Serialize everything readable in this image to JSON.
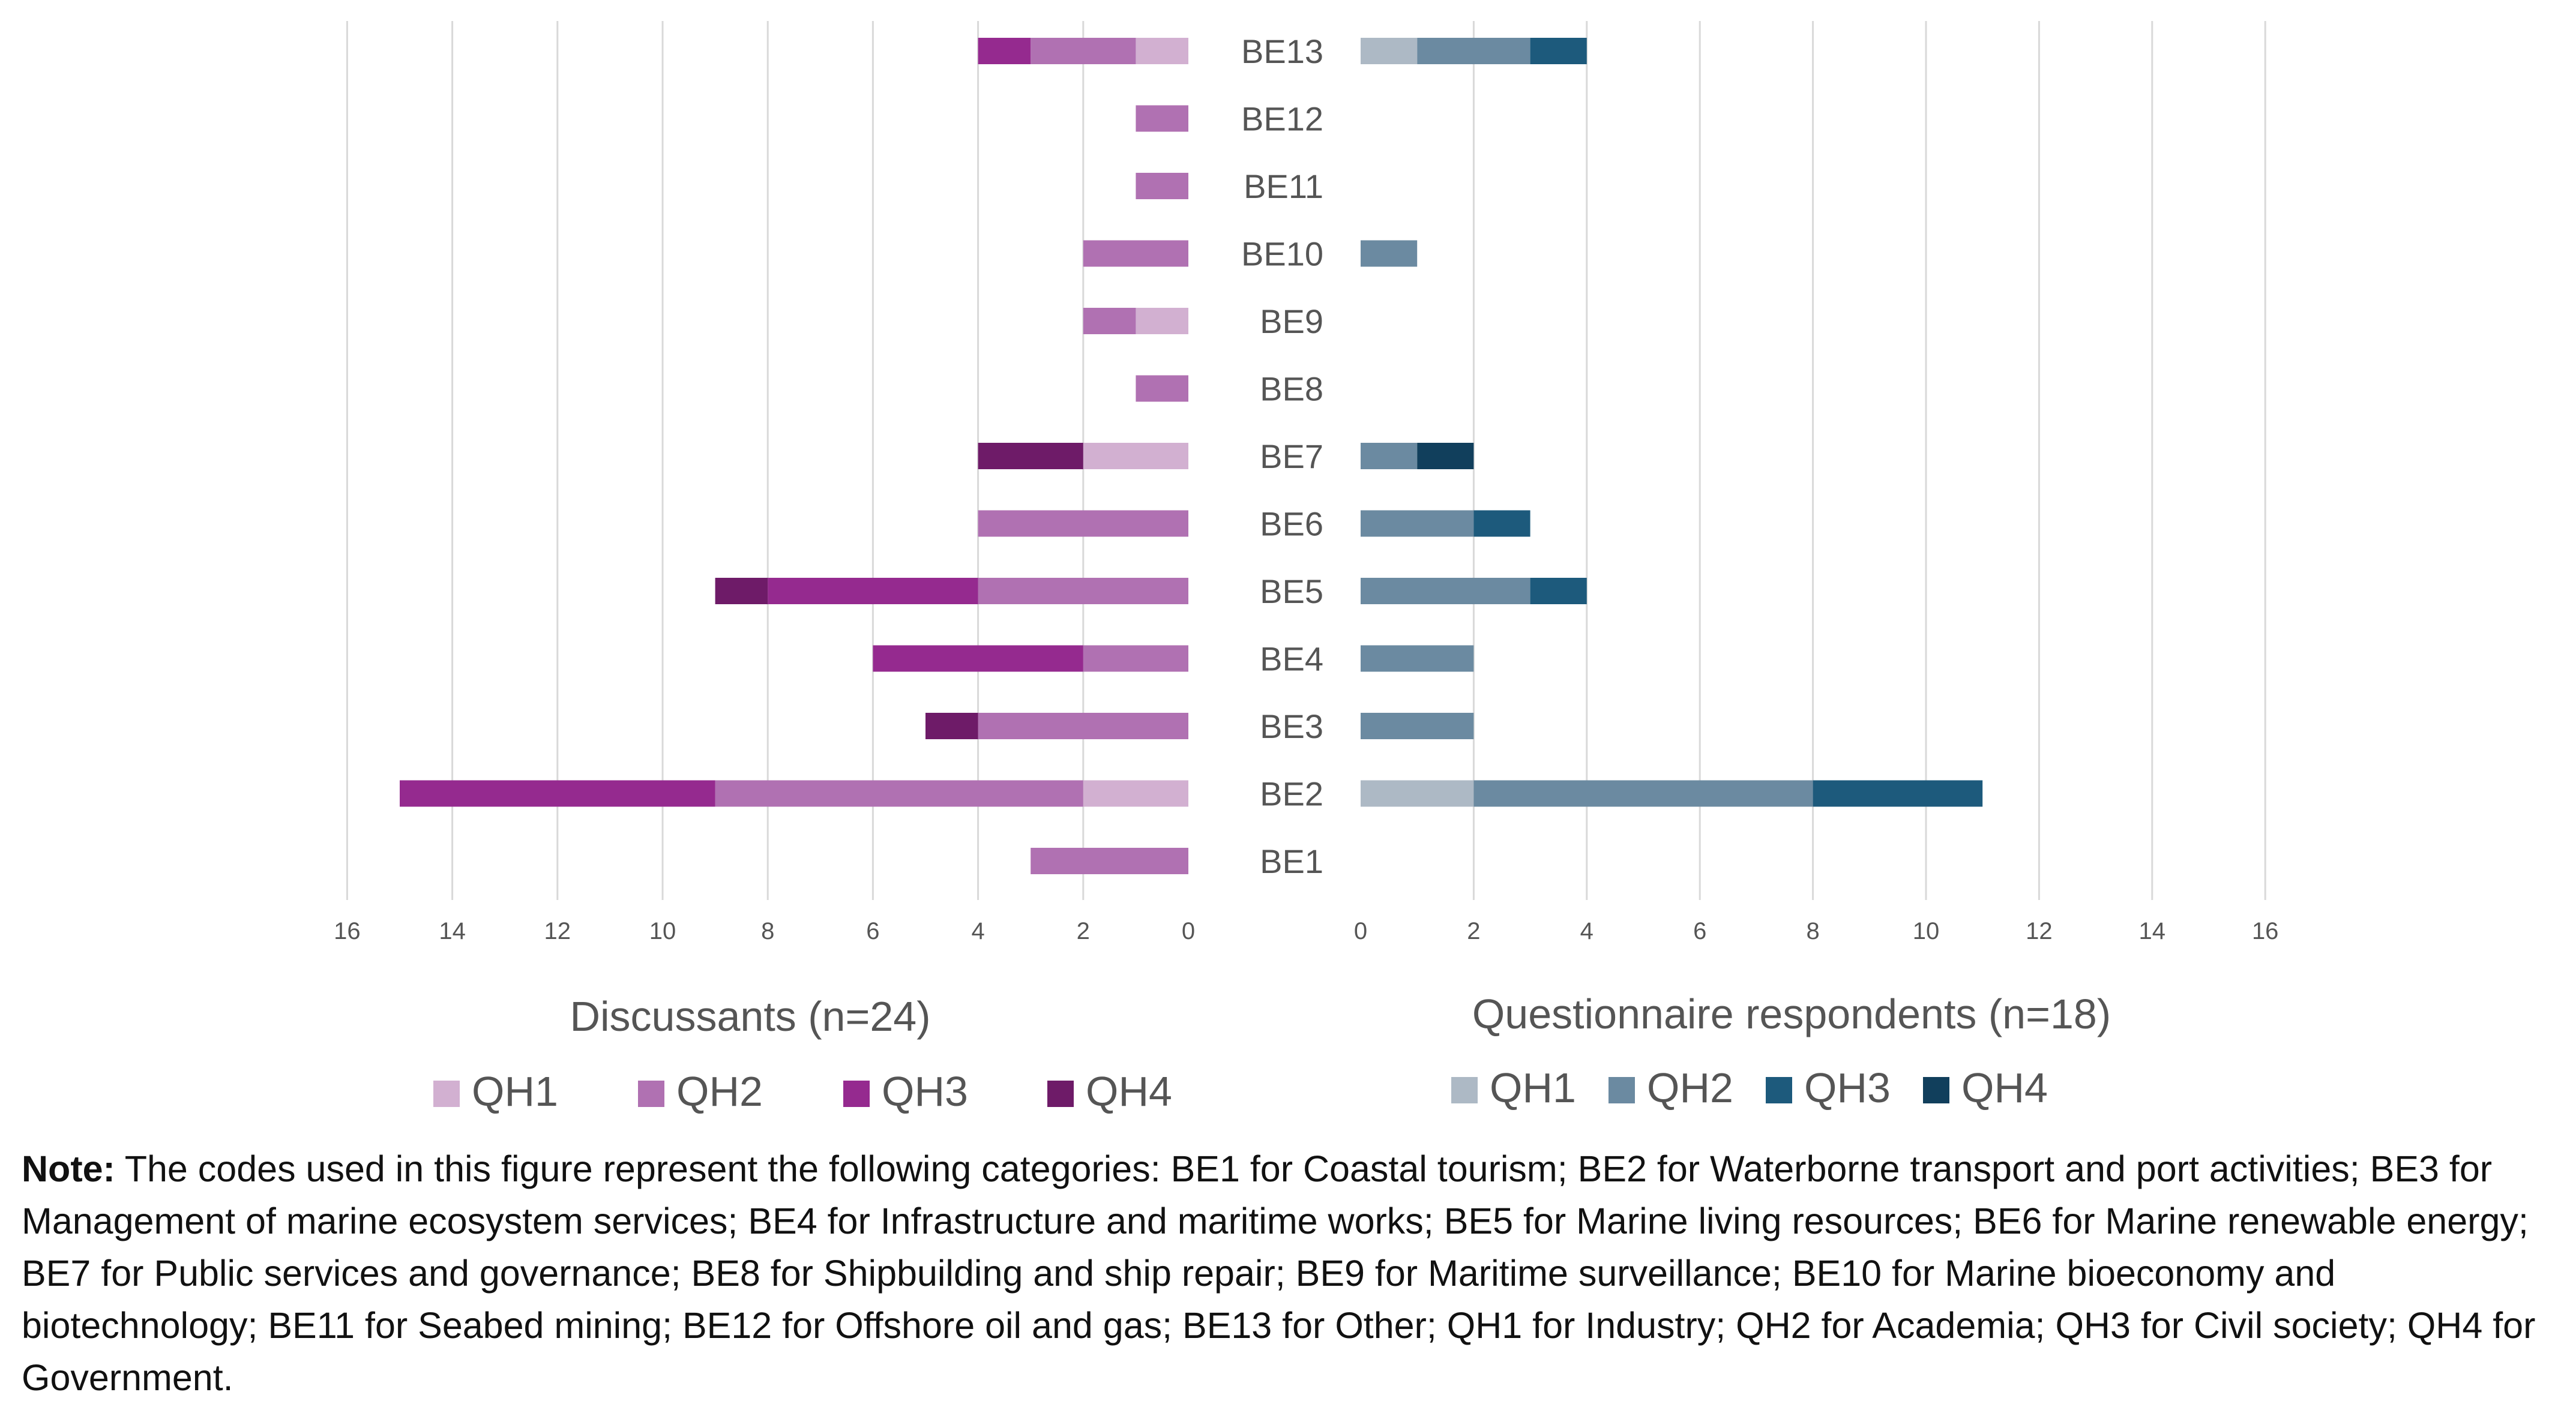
{
  "chart_data": [
    {
      "type": "bar",
      "orientation": "horizontal",
      "stacked": true,
      "direction": "reversed",
      "title": "Discussants (n=24)",
      "categories": [
        "BE1",
        "BE2",
        "BE3",
        "BE4",
        "BE5",
        "BE6",
        "BE7",
        "BE8",
        "BE9",
        "BE10",
        "BE11",
        "BE12",
        "BE13"
      ],
      "xlim": [
        0,
        16
      ],
      "xticks": [
        0,
        2,
        4,
        6,
        8,
        10,
        12,
        14,
        16
      ],
      "grid": true,
      "legend_position": "bottom",
      "series": [
        {
          "name": "QH1",
          "color": "#d2b0d1",
          "values": [
            0,
            2,
            0,
            0,
            0,
            0,
            2,
            0,
            1,
            0,
            0,
            0,
            1
          ]
        },
        {
          "name": "QH2",
          "color": "#b071b2",
          "values": [
            3,
            7,
            4,
            2,
            4,
            4,
            0,
            1,
            1,
            2,
            1,
            1,
            2
          ]
        },
        {
          "name": "QH3",
          "color": "#952a8f",
          "values": [
            0,
            6,
            0,
            4,
            4,
            0,
            0,
            0,
            0,
            0,
            0,
            0,
            1
          ]
        },
        {
          "name": "QH4",
          "color": "#6e1b68",
          "values": [
            0,
            0,
            1,
            0,
            1,
            0,
            2,
            0,
            0,
            0,
            0,
            0,
            0
          ]
        }
      ]
    },
    {
      "type": "bar",
      "orientation": "horizontal",
      "stacked": true,
      "title": "Questionnaire respondents (n=18)",
      "categories": [
        "BE1",
        "BE2",
        "BE3",
        "BE4",
        "BE5",
        "BE6",
        "BE7",
        "BE8",
        "BE9",
        "BE10",
        "BE11",
        "BE12",
        "BE13"
      ],
      "xlim": [
        0,
        16
      ],
      "xticks": [
        0,
        2,
        4,
        6,
        8,
        10,
        12,
        14,
        16
      ],
      "grid": true,
      "legend_position": "bottom",
      "series": [
        {
          "name": "QH1",
          "color": "#adb9c5",
          "values": [
            0,
            2,
            0,
            0,
            0,
            0,
            0,
            0,
            0,
            0,
            0,
            0,
            1
          ]
        },
        {
          "name": "QH2",
          "color": "#6b8aa1",
          "values": [
            0,
            6,
            2,
            2,
            3,
            2,
            1,
            0,
            0,
            1,
            0,
            0,
            2
          ]
        },
        {
          "name": "QH3",
          "color": "#1d5a7c",
          "values": [
            0,
            3,
            0,
            0,
            1,
            1,
            0,
            0,
            0,
            0,
            0,
            0,
            1
          ]
        },
        {
          "name": "QH4",
          "color": "#113f5c",
          "values": [
            0,
            0,
            0,
            0,
            0,
            0,
            1,
            0,
            0,
            0,
            0,
            0,
            0
          ]
        }
      ]
    }
  ],
  "note": {
    "label": "Note:",
    "text": "The codes used in this figure represent the following categories: BE1 for Coastal tourism; BE2 for Waterborne transport and port activities; BE3 for Management of marine ecosystem services; BE4 for Infrastructure and maritime works; BE5 for Marine living resources; BE6 for Marine renewable energy; BE7 for Public services and governance; BE8 for Shipbuilding and ship repair; BE9 for Maritime surveillance; BE10 for Marine bioeconomy and biotechnology; BE11 for Seabed mining; BE12 for Offshore oil and gas; BE13 for Other; QH1 for Industry; QH2 for Academia; QH3 for Civil society; QH4 for Government."
  }
}
